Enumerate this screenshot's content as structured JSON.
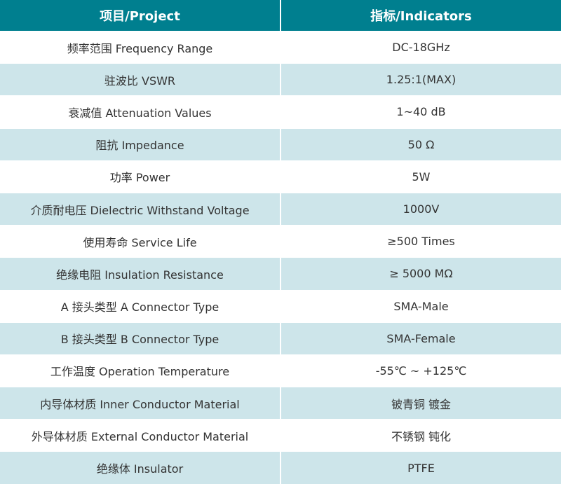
{
  "header": {
    "project": "项目/Project",
    "indicators": "指标/Indicators"
  },
  "rows": [
    {
      "project": "频率范围 Frequency Range",
      "value": "DC-18GHz"
    },
    {
      "project": "驻波比 VSWR",
      "value": "1.25:1(MAX)"
    },
    {
      "project": "衰减值 Attenuation Values",
      "value": "1~40 dB"
    },
    {
      "project": "阻抗 Impedance",
      "value": "50 Ω"
    },
    {
      "project": "功率 Power",
      "value": "5W"
    },
    {
      "project": "介质耐电压 Dielectric Withstand Voltage",
      "value": "1000V"
    },
    {
      "project": "使用寿命 Service Life",
      "value": "≥500 Times"
    },
    {
      "project": "绝缘电阻 Insulation Resistance",
      "value": "≥ 5000 MΩ"
    },
    {
      "project": "A 接头类型 A Connector Type",
      "value": "SMA-Male"
    },
    {
      "project": "B 接头类型 B Connector Type",
      "value": "SMA-Female"
    },
    {
      "project": "工作温度 Operation Temperature",
      "value": "-55℃ ~ +125℃"
    },
    {
      "project": "内导体材质 Inner Conductor Material",
      "value": "铍青铜 镀金"
    },
    {
      "project": "外导体材质 External Conductor Material",
      "value": "不锈钢 钝化"
    },
    {
      "project": "绝缘体 Insulator",
      "value": "PTFE"
    }
  ],
  "colors": {
    "header": "#007f8f",
    "stripe": "#cde5ea"
  }
}
